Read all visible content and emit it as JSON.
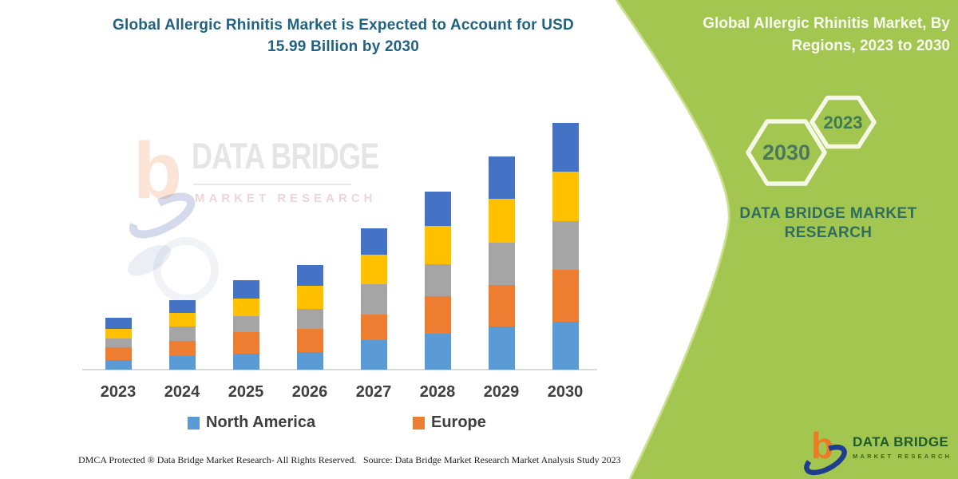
{
  "page": {
    "background": "#ffffff"
  },
  "colors": {
    "panel_green": "#A3C651",
    "panel_edge_highlight": "#CBDE8F",
    "chart_title_teal": "#1F6282",
    "panel_title_white": "#F8FBEF",
    "panel_caption_teal": "#2F6D60",
    "hexagon_stroke": "#F6F8E6",
    "hexagon_text": "#44795C",
    "axis_gray": "#D9D9D9",
    "label_gray": "#3F3F3F",
    "logo_orange": "#EE7A25",
    "logo_blue": "#1E3E8F",
    "logo_green": "#1C5B2D"
  },
  "chart_section": {
    "title": "Global Allergic Rhinitis Market is Expected to Account for USD 15.99 Billion by 2030",
    "watermark_brand": "DATA BRIDGE",
    "watermark_sub": "MARKET RESEARCH",
    "footer_left": "DMCA Protected ® Data Bridge Market Research-  All Rights Reserved.",
    "footer_right": "Source: Data Bridge Market Research  Market Analysis Study 2023"
  },
  "chart_data": {
    "type": "bar",
    "stacked": true,
    "title": "Global Allergic Rhinitis Market is Expected to Account for USD 15.99 Billion by 2030",
    "unit": "USD Billion",
    "categories": [
      "2023",
      "2024",
      "2025",
      "2026",
      "2027",
      "2028",
      "2029",
      "2030"
    ],
    "series": [
      {
        "name": "North America",
        "color": "#5B9BD5",
        "values": [
          0.62,
          0.88,
          1.04,
          1.14,
          1.9,
          2.33,
          2.79,
          3.1
        ]
      },
      {
        "name": "Europe",
        "color": "#ED7D31",
        "values": [
          0.83,
          0.98,
          1.4,
          1.5,
          1.66,
          2.43,
          2.69,
          3.35
        ]
      },
      {
        "name": "",
        "color": "#A5A5A5",
        "values": [
          0.57,
          0.93,
          1.04,
          1.29,
          1.97,
          2.07,
          2.74,
          3.2
        ]
      },
      {
        "name": "",
        "color": "#FFC000",
        "values": [
          0.62,
          0.88,
          1.14,
          1.5,
          1.91,
          2.48,
          2.85,
          3.2
        ]
      },
      {
        "name": "",
        "color": "#4472C4",
        "values": [
          0.72,
          0.83,
          1.19,
          1.35,
          1.71,
          2.23,
          2.74,
          3.14
        ]
      }
    ],
    "totals": [
      3.36,
      4.5,
      5.81,
      6.78,
      9.15,
      11.54,
      13.81,
      15.99
    ],
    "legend": [
      {
        "label": "North America",
        "color": "#5B9BD5"
      },
      {
        "label": "Europe",
        "color": "#ED7D31"
      }
    ],
    "legend_position": "bottom",
    "ylim": [
      0,
      16.5
    ],
    "gridlines": false,
    "y_axis_visible": false
  },
  "side_panel": {
    "title": "Global Allergic Rhinitis Market, By Regions, 2023 to 2030",
    "hexagons": [
      {
        "label": "2030"
      },
      {
        "label": "2023"
      }
    ],
    "caption": "DATA BRIDGE MARKET RESEARCH",
    "logo": {
      "brand": "DATA BRIDGE",
      "sub": "MARKET RESEARCH"
    }
  }
}
